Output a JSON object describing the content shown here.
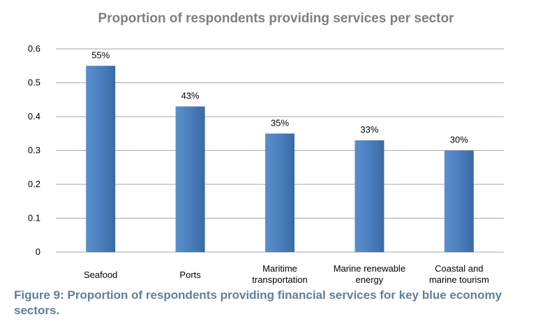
{
  "chart_data": {
    "type": "bar",
    "title": "Proportion of respondents providing services per sector",
    "categories": [
      "Seafood",
      "Ports",
      "Maritime\ntransportation",
      "Marine renewable\nenergy",
      "Coastal and\nmarine tourism"
    ],
    "values": [
      0.55,
      0.43,
      0.35,
      0.33,
      0.3
    ],
    "data_labels": [
      "55%",
      "43%",
      "35%",
      "33%",
      "30%"
    ],
    "yticks": [
      "0",
      "0.1",
      "0.2",
      "0.3",
      "0.4",
      "0.5",
      "0.6"
    ],
    "ylim": [
      0,
      0.6
    ],
    "xlabel": "",
    "ylabel": "",
    "grid": true,
    "legend": "none",
    "bar_color": "#4f81bd"
  },
  "caption": "Figure 9: Proportion of respondents providing financial services for key blue economy sectors."
}
